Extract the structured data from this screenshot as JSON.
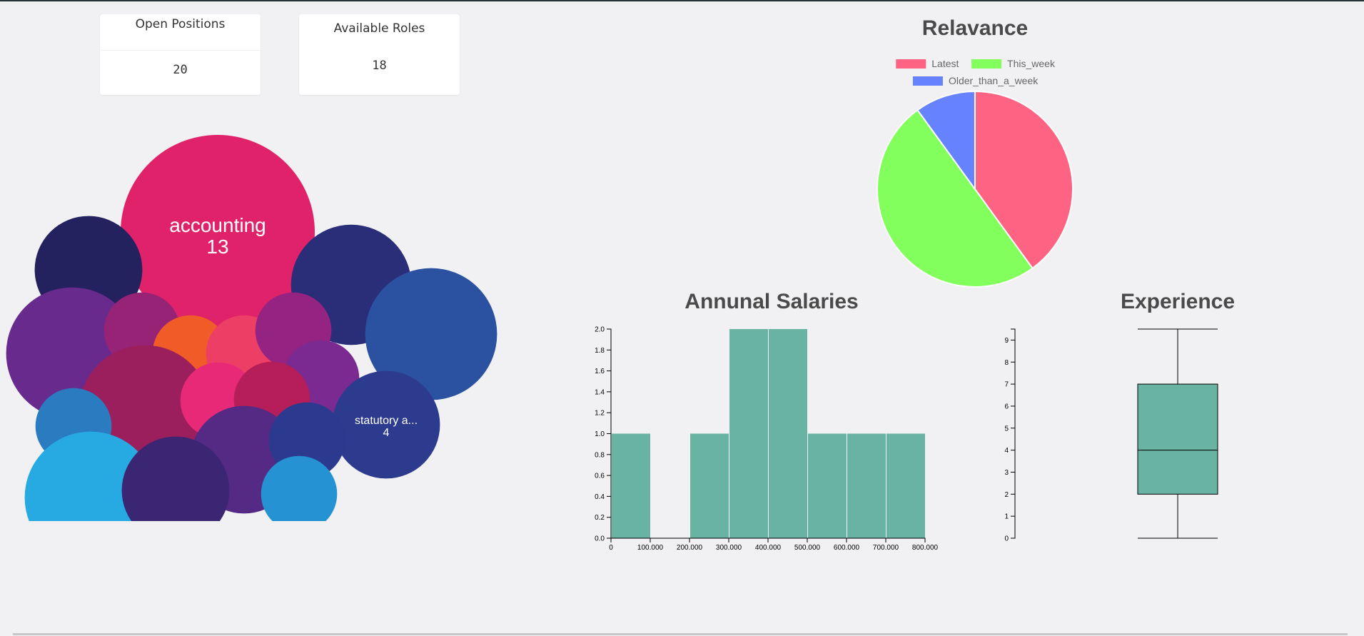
{
  "cards": {
    "open_positions": {
      "label": "Open Positions",
      "value": "20"
    },
    "available_roles": {
      "label": "Available Roles",
      "value": "18"
    }
  },
  "chart_data": [
    {
      "type": "bubble",
      "bubbles": [
        {
          "label": "accounting",
          "value": 13,
          "color": "#e0226b"
        },
        {
          "label": "",
          "value": 4,
          "color": "#24215f"
        },
        {
          "label": "",
          "value": 5,
          "color": "#2a2e78"
        },
        {
          "label": "",
          "value": 6,
          "color": "#682b8d"
        },
        {
          "label": "",
          "value": 6,
          "color": "#2b52a1"
        },
        {
          "label": "",
          "value": 2,
          "color": "#972377"
        },
        {
          "label": "",
          "value": 2,
          "color": "#f05b27"
        },
        {
          "label": "",
          "value": 2,
          "color": "#ed3f66"
        },
        {
          "label": "",
          "value": 2,
          "color": "#952381"
        },
        {
          "label": "",
          "value": 2,
          "color": "#7a2a91"
        },
        {
          "label": "",
          "value": 6,
          "color": "#9b1f5c"
        },
        {
          "label": "",
          "value": 2,
          "color": "#e72977"
        },
        {
          "label": "",
          "value": 2,
          "color": "#b61e5a"
        },
        {
          "label": "",
          "value": 2,
          "color": "#2a7bbf"
        },
        {
          "label": "statutory a...",
          "value": 4,
          "color": "#2d3b8e"
        },
        {
          "label": "",
          "value": 4,
          "color": "#552a84"
        },
        {
          "label": "",
          "value": 2,
          "color": "#2b3a8e"
        },
        {
          "label": "",
          "value": 6,
          "color": "#27aae2"
        },
        {
          "label": "",
          "value": 4,
          "color": "#3a2672"
        },
        {
          "label": "",
          "value": 2,
          "color": "#2593d3"
        }
      ]
    },
    {
      "type": "pie",
      "title": "Relavance",
      "legend_position": "top",
      "slices": [
        {
          "label": "Latest",
          "value": 8,
          "color": "#ff6384"
        },
        {
          "label": "This_week",
          "value": 10,
          "color": "#82ff5d"
        },
        {
          "label": "Older_than_a_week",
          "value": 2,
          "color": "#6682ff"
        }
      ]
    },
    {
      "type": "histogram",
      "title": "Annunal Salaries",
      "bin_width": 100000,
      "bins": [
        {
          "x0": 0,
          "x1": 100000,
          "count": 1
        },
        {
          "x0": 100000,
          "x1": 200000,
          "count": 0
        },
        {
          "x0": 200000,
          "x1": 300000,
          "count": 1
        },
        {
          "x0": 300000,
          "x1": 400000,
          "count": 2
        },
        {
          "x0": 400000,
          "x1": 500000,
          "count": 2
        },
        {
          "x0": 500000,
          "x1": 600000,
          "count": 1
        },
        {
          "x0": 600000,
          "x1": 700000,
          "count": 1
        },
        {
          "x0": 700000,
          "x1": 800000,
          "count": 1
        }
      ],
      "xticks": [
        "0",
        "100,000",
        "200,000",
        "300,000",
        "400,000",
        "500,000",
        "600,000",
        "700,000",
        "800,000"
      ],
      "yticks": [
        "0.0",
        "0.2",
        "0.4",
        "0.6",
        "0.8",
        "1.0",
        "1.2",
        "1.4",
        "1.6",
        "1.8",
        "2.0"
      ],
      "xlim": [
        0,
        800000
      ],
      "ylim": [
        0,
        2
      ],
      "color": "#69b3a2"
    },
    {
      "type": "boxplot",
      "title": "Experience",
      "min": 0,
      "q1": 2,
      "median": 4,
      "q3": 7,
      "max": 9.5,
      "yticks": [
        "0",
        "1",
        "2",
        "3",
        "4",
        "5",
        "6",
        "7",
        "8",
        "9"
      ],
      "ylim": [
        0,
        9.5
      ],
      "color": "#69b3a2"
    }
  ]
}
